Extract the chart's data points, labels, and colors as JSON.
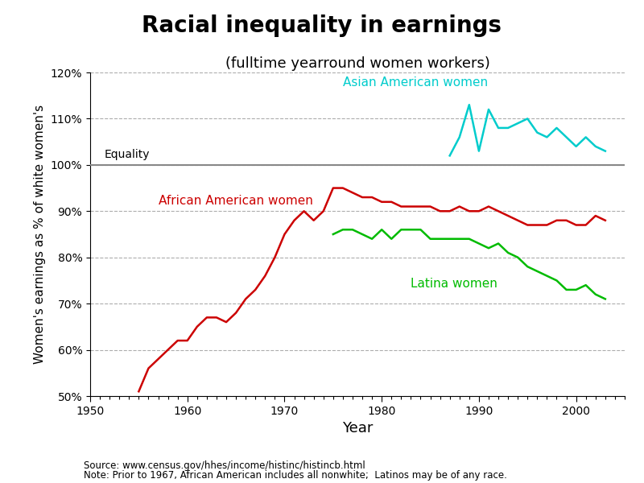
{
  "title": "Racial inequality in earnings",
  "subtitle": "(fulltime yearround women workers)",
  "xlabel": "Year",
  "ylabel": "Women's earnings as % of white women's",
  "xlim": [
    1950,
    2005
  ],
  "ylim": [
    50,
    120
  ],
  "yticks": [
    50,
    60,
    70,
    80,
    90,
    100,
    110,
    120
  ],
  "xticks": [
    1950,
    1960,
    1970,
    1980,
    1990,
    2000
  ],
  "equality_label": "Equality",
  "source_text": "Source: www.census.gov/hhes/income/histinc/histincb.html",
  "note_text": "Note: Prior to 1967, African American includes all nonwhite;  Latinos may be of any race.",
  "african_american": {
    "label": "African American women",
    "color": "#cc0000",
    "years": [
      1955,
      1956,
      1957,
      1958,
      1959,
      1960,
      1961,
      1962,
      1963,
      1964,
      1965,
      1966,
      1967,
      1968,
      1969,
      1970,
      1971,
      1972,
      1973,
      1974,
      1975,
      1976,
      1977,
      1978,
      1979,
      1980,
      1981,
      1982,
      1983,
      1984,
      1985,
      1986,
      1987,
      1988,
      1989,
      1990,
      1991,
      1992,
      1993,
      1994,
      1995,
      1996,
      1997,
      1998,
      1999,
      2000,
      2001,
      2002,
      2003
    ],
    "values": [
      51,
      56,
      58,
      60,
      62,
      62,
      65,
      67,
      67,
      66,
      68,
      71,
      73,
      76,
      80,
      85,
      88,
      90,
      88,
      90,
      95,
      95,
      94,
      93,
      93,
      92,
      92,
      91,
      91,
      91,
      91,
      90,
      90,
      91,
      90,
      90,
      91,
      90,
      89,
      88,
      87,
      87,
      87,
      88,
      88,
      87,
      87,
      89,
      88
    ]
  },
  "latina": {
    "label": "Latina women",
    "color": "#00bb00",
    "years": [
      1975,
      1976,
      1977,
      1978,
      1979,
      1980,
      1981,
      1982,
      1983,
      1984,
      1985,
      1986,
      1987,
      1988,
      1989,
      1990,
      1991,
      1992,
      1993,
      1994,
      1995,
      1996,
      1997,
      1998,
      1999,
      2000,
      2001,
      2002,
      2003
    ],
    "values": [
      85,
      86,
      86,
      85,
      84,
      86,
      84,
      86,
      86,
      86,
      84,
      84,
      84,
      84,
      84,
      83,
      82,
      83,
      81,
      80,
      78,
      77,
      76,
      75,
      73,
      73,
      74,
      72,
      71
    ]
  },
  "asian_american": {
    "label": "Asian American women",
    "color": "#00cccc",
    "years": [
      1987,
      1988,
      1989,
      1990,
      1991,
      1992,
      1993,
      1994,
      1995,
      1996,
      1997,
      1998,
      1999,
      2000,
      2001,
      2002,
      2003
    ],
    "values": [
      102,
      106,
      113,
      103,
      112,
      108,
      108,
      109,
      110,
      107,
      106,
      108,
      106,
      104,
      106,
      104,
      103
    ]
  },
  "background_color": "#ffffff",
  "grid_color": "#999999",
  "equality_line_color": "#888888",
  "label_positions": {
    "african_american": [
      1957,
      91.5
    ],
    "latina": [
      1983,
      73.5
    ],
    "asian_american": [
      1976,
      117
    ]
  }
}
